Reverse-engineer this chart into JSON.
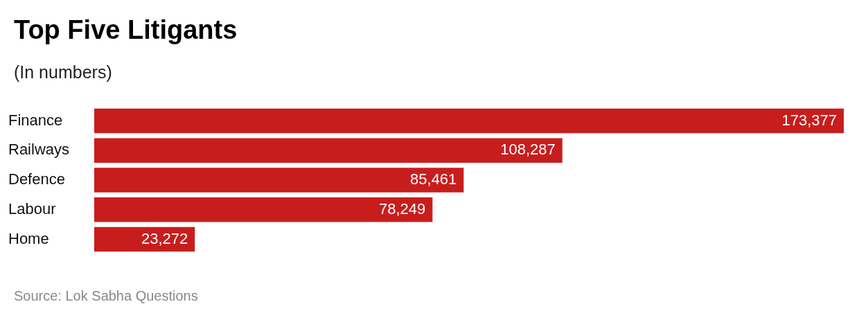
{
  "chart_data": {
    "type": "bar",
    "orientation": "horizontal",
    "title": "Top Five Litigants",
    "subtitle": "(In numbers)",
    "categories": [
      "Finance",
      "Railways",
      "Defence",
      "Labour",
      "Home"
    ],
    "values": [
      173377,
      108287,
      85461,
      78249,
      23272
    ],
    "value_labels": [
      "173,377",
      "108,287",
      "85,461",
      "78,249",
      "23,272"
    ],
    "color": "#c71e1d",
    "legend": false,
    "annotations": [
      "Source: Lok Sabha Questions"
    ]
  }
}
